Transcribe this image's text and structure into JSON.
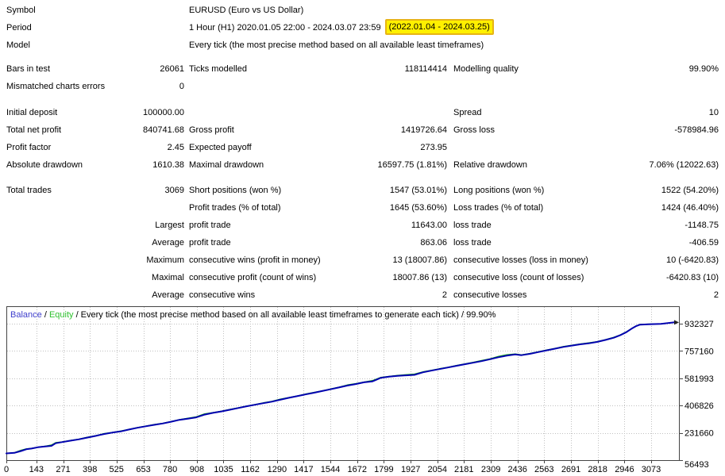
{
  "report": {
    "header_rows": [
      {
        "label": "Symbol",
        "value": "EURUSD (Euro vs US Dollar)"
      },
      {
        "label": "Period",
        "value": "1 Hour (H1) 2020.01.05 22:00 - 2024.03.07 23:59 ",
        "highlight": "(2022.01.04 - 2024.03.25)"
      },
      {
        "label": "Model",
        "value": "Every tick (the most precise method based on all available least timeframes)"
      }
    ],
    "stat_sections": [
      {
        "rows": [
          [
            "Bars in test",
            "26061",
            "Ticks modelled",
            "118114414",
            "Modelling quality",
            "99.90%"
          ],
          [
            "Mismatched charts errors",
            "0",
            "",
            "",
            "",
            ""
          ]
        ]
      },
      {
        "rows": [
          [
            "Initial deposit",
            "100000.00",
            "",
            "",
            "Spread",
            "10"
          ],
          [
            "Total net profit",
            "840741.68",
            "Gross profit",
            "1419726.64",
            "Gross loss",
            "-578984.96"
          ],
          [
            "Profit factor",
            "2.45",
            "Expected payoff",
            "273.95",
            "",
            ""
          ],
          [
            "Absolute drawdown",
            "1610.38",
            "Maximal drawdown",
            "16597.75 (1.81%)",
            "Relative drawdown",
            "7.06% (12022.63)"
          ]
        ]
      },
      {
        "rows": [
          [
            "Total trades",
            "3069",
            "Short positions (won %)",
            "1547 (53.01%)",
            "Long positions (won %)",
            "1522 (54.20%)"
          ],
          [
            "",
            "",
            "Profit trades (% of total)",
            "1645 (53.60%)",
            "Loss trades (% of total)",
            "1424 (46.40%)"
          ],
          [
            "",
            "Largest",
            "profit trade",
            "11643.00",
            "loss trade",
            "-1148.75"
          ],
          [
            "",
            "Average",
            "profit trade",
            "863.06",
            "loss trade",
            "-406.59"
          ],
          [
            "",
            "Maximum",
            "consecutive wins (profit in money)",
            "13 (18007.86)",
            "consecutive losses (loss in money)",
            "10 (-6420.83)"
          ],
          [
            "",
            "Maximal",
            "consecutive profit (count of wins)",
            "18007.86 (13)",
            "consecutive loss (count of losses)",
            "-6420.83 (10)"
          ],
          [
            "",
            "Average",
            "consecutive wins",
            "2",
            "consecutive losses",
            "2"
          ]
        ]
      }
    ]
  },
  "chart_data": {
    "type": "line",
    "legend": {
      "balance_label": "Balance",
      "sep1": " / ",
      "equity_label": "Equity",
      "note": " / Every tick (the most precise method based on all available least timeframes to generate each tick) / 99.90%"
    },
    "xlabel": "",
    "ylabel": "",
    "x_ticks": [
      0,
      143,
      271,
      398,
      525,
      653,
      780,
      908,
      1035,
      1162,
      1290,
      1417,
      1544,
      1672,
      1799,
      1927,
      2054,
      2181,
      2309,
      2436,
      2563,
      2691,
      2818,
      2946,
      3073
    ],
    "y_ticks": [
      932327,
      757160,
      581993,
      406826,
      231660,
      56493
    ],
    "ylim": [
      56493,
      932327
    ],
    "grid": "dotted",
    "legend_position": "top-left-inside",
    "series": [
      {
        "name": "Balance",
        "color": "#0202b0",
        "width": 2,
        "points": [
          [
            0,
            100000
          ],
          [
            40,
            104000
          ],
          [
            70,
            115000
          ],
          [
            95,
            126000
          ],
          [
            120,
            131000
          ],
          [
            150,
            139000
          ],
          [
            185,
            144000
          ],
          [
            215,
            148000
          ],
          [
            235,
            165000
          ],
          [
            265,
            172000
          ],
          [
            305,
            181000
          ],
          [
            345,
            190000
          ],
          [
            385,
            201000
          ],
          [
            425,
            212000
          ],
          [
            465,
            224000
          ],
          [
            505,
            233000
          ],
          [
            545,
            241000
          ],
          [
            585,
            253000
          ],
          [
            625,
            264000
          ],
          [
            665,
            274000
          ],
          [
            705,
            283000
          ],
          [
            745,
            292000
          ],
          [
            785,
            303000
          ],
          [
            825,
            315000
          ],
          [
            865,
            323000
          ],
          [
            905,
            331000
          ],
          [
            945,
            349000
          ],
          [
            985,
            360000
          ],
          [
            1025,
            369000
          ],
          [
            1065,
            380000
          ],
          [
            1105,
            391000
          ],
          [
            1145,
            402000
          ],
          [
            1185,
            412000
          ],
          [
            1225,
            422000
          ],
          [
            1265,
            432000
          ],
          [
            1305,
            444000
          ],
          [
            1345,
            456000
          ],
          [
            1385,
            467000
          ],
          [
            1425,
            478000
          ],
          [
            1465,
            489000
          ],
          [
            1505,
            500000
          ],
          [
            1545,
            511000
          ],
          [
            1585,
            523000
          ],
          [
            1625,
            535000
          ],
          [
            1665,
            545000
          ],
          [
            1705,
            556000
          ],
          [
            1745,
            562000
          ],
          [
            1785,
            585000
          ],
          [
            1825,
            592000
          ],
          [
            1865,
            598000
          ],
          [
            1905,
            601000
          ],
          [
            1945,
            604000
          ],
          [
            1985,
            620000
          ],
          [
            2025,
            631000
          ],
          [
            2065,
            641000
          ],
          [
            2105,
            651000
          ],
          [
            2145,
            662000
          ],
          [
            2185,
            672000
          ],
          [
            2225,
            682000
          ],
          [
            2265,
            692000
          ],
          [
            2305,
            704000
          ],
          [
            2345,
            717000
          ],
          [
            2385,
            727000
          ],
          [
            2425,
            735000
          ],
          [
            2455,
            730000
          ],
          [
            2495,
            739000
          ],
          [
            2535,
            750000
          ],
          [
            2575,
            761000
          ],
          [
            2615,
            772000
          ],
          [
            2655,
            783000
          ],
          [
            2695,
            792000
          ],
          [
            2735,
            800000
          ],
          [
            2775,
            806000
          ],
          [
            2815,
            815000
          ],
          [
            2855,
            828000
          ],
          [
            2895,
            842000
          ],
          [
            2925,
            858000
          ],
          [
            2955,
            878000
          ],
          [
            2980,
            900000
          ],
          [
            3000,
            916000
          ],
          [
            3020,
            926000
          ],
          [
            3060,
            929000
          ],
          [
            3120,
            931000
          ],
          [
            3185,
            940742
          ]
        ]
      },
      {
        "name": "Equity",
        "color": "#0fa30f",
        "width": 1.3,
        "points": [
          [
            0,
            100000
          ],
          [
            40,
            105500
          ],
          [
            70,
            120000
          ],
          [
            95,
            129000
          ],
          [
            120,
            132500
          ],
          [
            150,
            140000
          ],
          [
            185,
            146000
          ],
          [
            215,
            154000
          ],
          [
            235,
            169000
          ],
          [
            265,
            173500
          ],
          [
            305,
            183000
          ],
          [
            345,
            191500
          ],
          [
            385,
            203500
          ],
          [
            425,
            213500
          ],
          [
            465,
            227000
          ],
          [
            505,
            234500
          ],
          [
            545,
            243500
          ],
          [
            585,
            254500
          ],
          [
            625,
            266000
          ],
          [
            665,
            275500
          ],
          [
            705,
            285500
          ],
          [
            745,
            293500
          ],
          [
            785,
            305000
          ],
          [
            825,
            316500
          ],
          [
            865,
            325500
          ],
          [
            905,
            334500
          ],
          [
            945,
            354000
          ],
          [
            985,
            362000
          ],
          [
            1025,
            370500
          ],
          [
            1065,
            382500
          ],
          [
            1105,
            392500
          ],
          [
            1145,
            404000
          ],
          [
            1185,
            413500
          ],
          [
            1225,
            424500
          ],
          [
            1265,
            434000
          ],
          [
            1305,
            448000
          ],
          [
            1345,
            458000
          ],
          [
            1385,
            468500
          ],
          [
            1425,
            480500
          ],
          [
            1465,
            491000
          ],
          [
            1505,
            501500
          ],
          [
            1545,
            513500
          ],
          [
            1585,
            525000
          ],
          [
            1625,
            539000
          ],
          [
            1665,
            548000
          ],
          [
            1705,
            558000
          ],
          [
            1745,
            567000
          ],
          [
            1785,
            588000
          ],
          [
            1825,
            594000
          ],
          [
            1865,
            601000
          ],
          [
            1905,
            605000
          ],
          [
            1945,
            609000
          ],
          [
            1985,
            623000
          ],
          [
            2025,
            633000
          ],
          [
            2065,
            643500
          ],
          [
            2105,
            653000
          ],
          [
            2145,
            664500
          ],
          [
            2185,
            674000
          ],
          [
            2225,
            685000
          ],
          [
            2265,
            696000
          ],
          [
            2305,
            707000
          ],
          [
            2345,
            722000
          ],
          [
            2385,
            733000
          ],
          [
            2425,
            738000
          ],
          [
            2455,
            732000
          ],
          [
            2495,
            741500
          ],
          [
            2535,
            752000
          ],
          [
            2575,
            764000
          ],
          [
            2615,
            774000
          ],
          [
            2655,
            785500
          ],
          [
            2695,
            794000
          ],
          [
            2735,
            802500
          ],
          [
            2775,
            809500
          ],
          [
            2815,
            817500
          ],
          [
            2855,
            830000
          ],
          [
            2895,
            845000
          ],
          [
            2925,
            860000
          ],
          [
            2955,
            880500
          ],
          [
            2980,
            901500
          ],
          [
            3000,
            917000
          ],
          [
            3020,
            927500
          ],
          [
            3060,
            930000
          ],
          [
            3120,
            932000
          ],
          [
            3185,
            940742
          ]
        ]
      }
    ]
  },
  "colors": {
    "balance_line": "#0202b0",
    "equity_line": "#0fa30f",
    "legend_balance_text": "#3e3ecc",
    "legend_equity_text": "#2fc12f",
    "highlight_bg": "#fff000",
    "highlight_border": "#e7b416",
    "grid": "#c0c0c0",
    "frame": "#444444",
    "text": "#000000"
  }
}
